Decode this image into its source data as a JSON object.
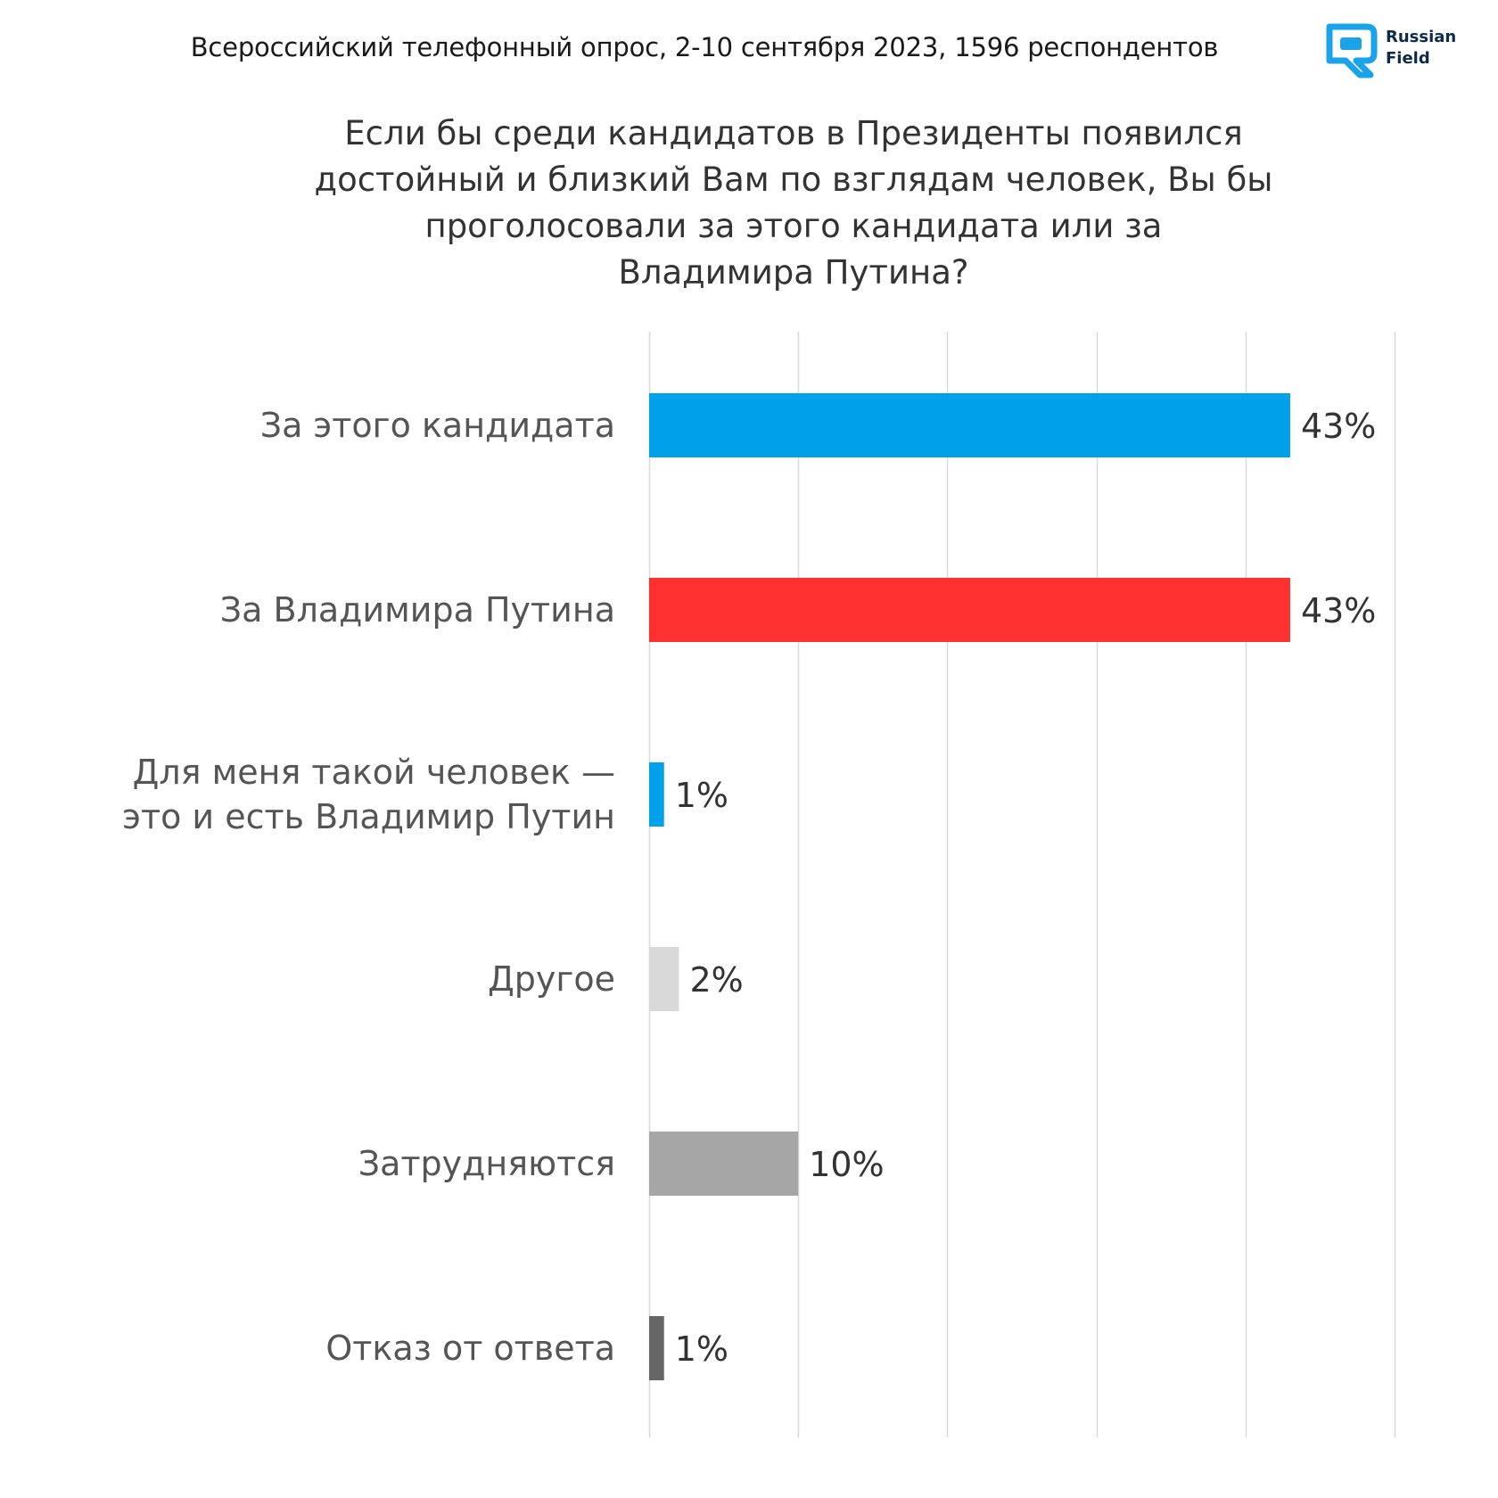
{
  "header": {
    "subtitle": "Всероссийский телефонный опрос, 2-10 сентября 2023, 1596 респондентов",
    "title_lines": [
      "Если бы среди кандидатов в Президенты появился",
      "достойный и близкий Вам по взглядам человек, Вы бы",
      "проголосовали за этого кандидата или за",
      "Владимира Путина?"
    ]
  },
  "logo": {
    "name_line1": "Russian",
    "name_line2": "Field",
    "icon": "rf-logo-icon",
    "color": "#1aa3e8"
  },
  "chart_data": {
    "type": "bar",
    "orientation": "horizontal",
    "title": "Если бы среди кандидатов в Президенты появился достойный и близкий Вам по взглядам человек, Вы бы проголосовали за этого кандидата или за Владимира Путина?",
    "categories": [
      [
        "За этого кандидата"
      ],
      [
        "За Владимира Путина"
      ],
      [
        "Для меня такой человек —",
        "это и есть Владимир Путин"
      ],
      [
        "Другое"
      ],
      [
        "Затрудняются"
      ],
      [
        "Отказ от ответа"
      ]
    ],
    "values": [
      43,
      43,
      1,
      2,
      10,
      1
    ],
    "data_labels": [
      "43%",
      "43%",
      "1%",
      "2%",
      "10%",
      "1%"
    ],
    "colors": [
      "#00a0ea",
      "#ff3030",
      "#00a0ea",
      "#d9d9d9",
      "#a6a6a6",
      "#666666"
    ],
    "xlim": [
      0,
      50
    ],
    "gridlines": true,
    "tick_labels_shown": false,
    "legend": "none"
  }
}
